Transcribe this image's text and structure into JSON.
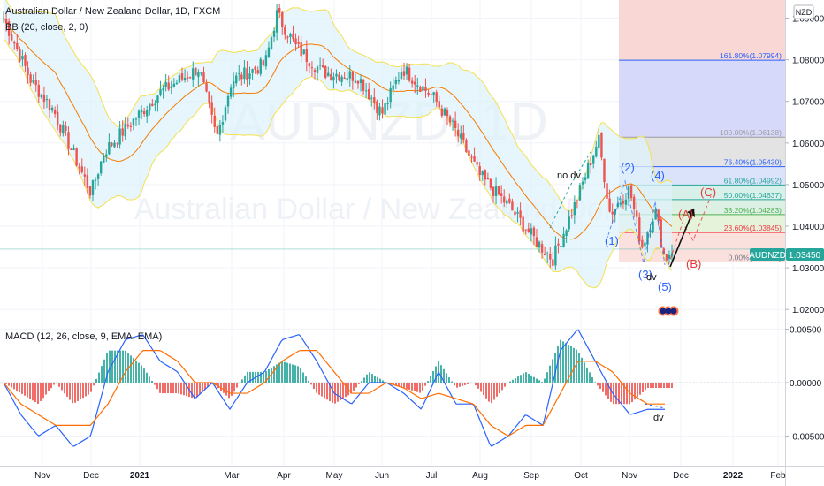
{
  "header": {
    "symbol_title": "Australian Dollar / New Zealand Dollar, 1D, FXCM",
    "bb_indicator": "BB (20, close, 2, 0)",
    "macd_indicator": "MACD (12, 26, close, 9, EMA, EMA)",
    "currency_badge": "NZD"
  },
  "watermark": {
    "ticker": "AUDNZD, 1D",
    "name": "Australian Dollar / New Zealand Dollar"
  },
  "price_tag": {
    "symbol": "AUDNZD",
    "value": "1.03450",
    "value_num": 1.0345
  },
  "colors": {
    "up": "#26a69a",
    "down": "#ef5350",
    "bb_basis": "#f57c00",
    "bb_band": "#f5e050",
    "bb_fill": "#dff1fb",
    "macd": "#2962ff",
    "signal": "#ff6d00",
    "hist_up": "#26a69a",
    "hist_down": "#ef5350",
    "tag_bg": "#26a69a",
    "wave_blue": "#2962ff",
    "wave_red": "#e53935"
  },
  "chart_data": [
    {
      "type": "candlestick",
      "title": "Australian Dollar / New Zealand Dollar, 1D, FXCM",
      "x_tick_labels": [
        "Nov",
        "Dec",
        "2021",
        "Mar",
        "Apr",
        "May",
        "Jun",
        "Jul",
        "Aug",
        "Sep",
        "Oct",
        "Nov",
        "Dec",
        "2022",
        "Feb"
      ],
      "y_tick_labels": [
        "1.09000",
        "1.08000",
        "1.07000",
        "1.06000",
        "1.05000",
        "1.04000",
        "1.03000",
        "1.02000"
      ],
      "ylim": [
        1.0175,
        1.0935
      ],
      "close_path_anchors": [
        {
          "x": "Oct 2020",
          "y": 1.09
        },
        {
          "x": "Nov 2020",
          "y": 1.075
        },
        {
          "x": "Nov 2020",
          "y": 1.068
        },
        {
          "x": "Dec 2020",
          "y": 1.048
        },
        {
          "x": "Dec 2020",
          "y": 1.058
        },
        {
          "x": "Jan 2021",
          "y": 1.072
        },
        {
          "x": "Feb 2021",
          "y": 1.078
        },
        {
          "x": "Feb 2021",
          "y": 1.061
        },
        {
          "x": "Mar 2021",
          "y": 1.075
        },
        {
          "x": "Mar 2021",
          "y": 1.079
        },
        {
          "x": "Apr 2021",
          "y": 1.091
        },
        {
          "x": "Apr 2021",
          "y": 1.083
        },
        {
          "x": "May 2021",
          "y": 1.077
        },
        {
          "x": "May 2021",
          "y": 1.076
        },
        {
          "x": "Jun 2021",
          "y": 1.067
        },
        {
          "x": "Jun 2021",
          "y": 1.078
        },
        {
          "x": "Jul 2021",
          "y": 1.071
        },
        {
          "x": "Jul 2021",
          "y": 1.063
        },
        {
          "x": "Aug 2021",
          "y": 1.052
        },
        {
          "x": "Aug 2021",
          "y": 1.045
        },
        {
          "x": "Sep 2021",
          "y": 1.038
        },
        {
          "x": "Sep 2021",
          "y": 1.032
        },
        {
          "x": "Oct 2021",
          "y": 1.045
        },
        {
          "x": "Oct 2021",
          "y": 1.061
        },
        {
          "x": "Oct 2021",
          "y": 1.043
        },
        {
          "x": "Nov 2021",
          "y": 1.049
        },
        {
          "x": "Nov 2021",
          "y": 1.035
        },
        {
          "x": "Nov 2021",
          "y": 1.044
        },
        {
          "x": "Nov 2021",
          "y": 1.032
        },
        {
          "x": "Nov 2021",
          "y": 1.0345
        }
      ],
      "bollinger": {
        "period": 20,
        "source": "close",
        "stddev": 2,
        "offset": 0
      },
      "fibonacci_levels": [
        {
          "label": "161.80%(1.07994)",
          "level": 1.0799,
          "color": "#2962ff"
        },
        {
          "label": "100.00%(1.06138)",
          "level": 1.0614,
          "color": "#9e9e9e"
        },
        {
          "label": "76.40%(1.05430)",
          "level": 1.0543,
          "color": "#2962ff"
        },
        {
          "label": "61.80%(1.04992)",
          "level": 1.0499,
          "color": "#26a69a"
        },
        {
          "label": "50.00%(1.04637)",
          "level": 1.0464,
          "color": "#26a69a"
        },
        {
          "label": "38.20%(1.04283)",
          "level": 1.0428,
          "color": "#4caf50"
        },
        {
          "label": "23.60%(1.03845)",
          "level": 1.0385,
          "color": "#f23645"
        },
        {
          "label": "0.00%(1.03136)",
          "level": 1.0314,
          "color": "#787b86"
        }
      ],
      "annotations": {
        "no_dv": "no dv",
        "dv_price": "dv",
        "waves_blue": [
          "(1)",
          "(2)",
          "(3)",
          "(4)",
          "(5)"
        ],
        "waves_red": [
          "(A)",
          "(B)",
          "(C)"
        ]
      }
    },
    {
      "type": "line",
      "title": "MACD (12, 26, close, 9, EMA, EMA)",
      "y_tick_labels": [
        "0.00500",
        "0.00000",
        "-0.00500"
      ],
      "ylim": [
        -0.0076,
        0.0052
      ],
      "series": [
        {
          "role": "macd",
          "values": [
            0.0,
            -0.003,
            -0.005,
            -0.004,
            -0.006,
            -0.005,
            0.001,
            0.004,
            0.0045,
            0.002,
            0.001,
            -0.0015,
            0.0,
            -0.0025,
            0.0,
            0.001,
            0.004,
            0.0045,
            0.002,
            -0.001,
            -0.002,
            0.0,
            0.0,
            -0.001,
            -0.0025,
            0.001,
            -0.002,
            -0.002,
            -0.006,
            -0.005,
            -0.003,
            -0.004,
            0.003,
            0.005,
            0.002,
            -0.001,
            -0.003,
            -0.0025,
            -0.0025
          ]
        },
        {
          "role": "signal",
          "values": [
            0.0,
            -0.002,
            -0.003,
            -0.004,
            -0.004,
            -0.004,
            -0.002,
            0.001,
            0.003,
            0.003,
            0.002,
            0.0,
            0.0,
            -0.001,
            -0.001,
            0.0,
            0.002,
            0.003,
            0.003,
            0.001,
            -0.001,
            -0.001,
            0.0,
            -0.0005,
            -0.0015,
            -0.001,
            -0.0015,
            -0.002,
            -0.004,
            -0.005,
            -0.004,
            -0.004,
            -0.001,
            0.002,
            0.002,
            0.001,
            -0.001,
            -0.002,
            -0.002
          ]
        }
      ],
      "annotations": {
        "dv_macd": "dv"
      }
    }
  ]
}
